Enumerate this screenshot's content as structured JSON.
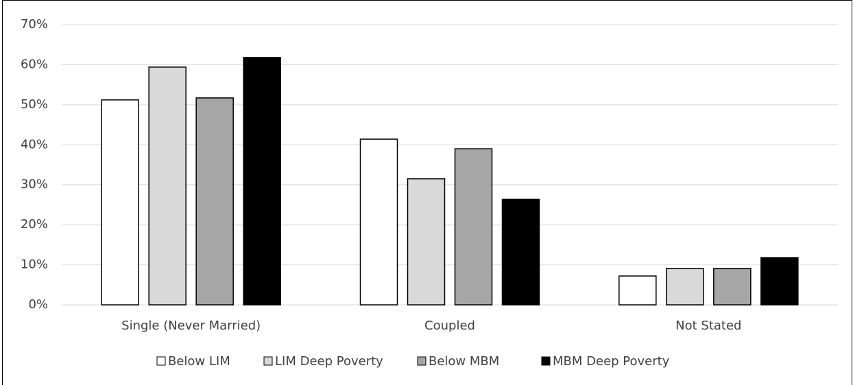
{
  "chart_data": {
    "type": "bar",
    "categories": [
      "Single (Never Married)",
      "Coupled",
      "Not Stated"
    ],
    "series": [
      {
        "name": "Below LIM",
        "color": "#ffffff",
        "values": [
          51.2,
          41.4,
          7.2
        ]
      },
      {
        "name": "LIM Deep Poverty",
        "color": "#d9d9d9",
        "values": [
          59.4,
          31.5,
          9.1
        ]
      },
      {
        "name": "Below MBM",
        "color": "#a6a6a6",
        "values": [
          51.7,
          39.0,
          9.1
        ]
      },
      {
        "name": "MBM Deep Poverty",
        "color": "#000000",
        "values": [
          61.8,
          26.4,
          11.8
        ]
      }
    ],
    "ylim": [
      0,
      70
    ],
    "yticks": [
      {
        "value": 0,
        "label": "0%"
      },
      {
        "value": 10,
        "label": "10%"
      },
      {
        "value": 20,
        "label": "20%"
      },
      {
        "value": 30,
        "label": "30%"
      },
      {
        "value": 40,
        "label": "40%"
      },
      {
        "value": 50,
        "label": "50%"
      },
      {
        "value": 60,
        "label": "60%"
      },
      {
        "value": 70,
        "label": "70%"
      }
    ],
    "grid": true,
    "legend": "bottom"
  }
}
